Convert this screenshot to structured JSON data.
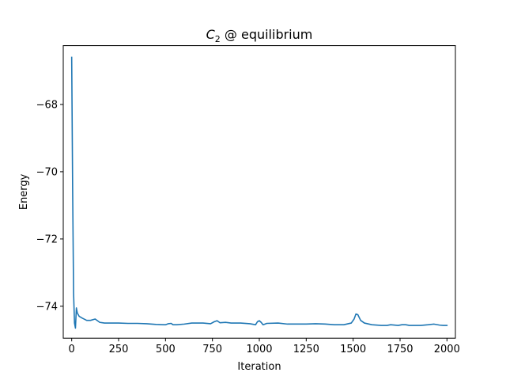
{
  "chart_data": {
    "type": "line",
    "title_main": "C",
    "title_sub": "2",
    "title_rest": " @ equilibrium",
    "xlabel": "Iteration",
    "ylabel": "Energy",
    "xlim": [
      -45,
      2045
    ],
    "ylim": [
      -74.95,
      -66.25
    ],
    "x_ticks": [
      0,
      250,
      500,
      750,
      1000,
      1250,
      1500,
      1750,
      2000
    ],
    "y_ticks": [
      -74,
      -72,
      -70,
      -68
    ],
    "y_tick_labels": [
      "−74",
      "−72",
      "−70",
      "−68"
    ],
    "grid": false,
    "series": [
      {
        "color": "#1f77b4",
        "x": [
          0,
          5,
          10,
          15,
          20,
          25,
          30,
          40,
          55,
          80,
          100,
          125,
          150,
          175,
          200,
          250,
          300,
          350,
          400,
          450,
          490,
          500,
          515,
          530,
          540,
          560,
          600,
          640,
          700,
          740,
          760,
          775,
          790,
          820,
          850,
          900,
          950,
          980,
          990,
          1000,
          1010,
          1020,
          1040,
          1100,
          1150,
          1200,
          1250,
          1300,
          1350,
          1400,
          1450,
          1490,
          1505,
          1515,
          1525,
          1540,
          1560,
          1600,
          1650,
          1680,
          1700,
          1740,
          1760,
          1780,
          1800,
          1830,
          1860,
          1900,
          1930,
          1960,
          1980,
          2000
        ],
        "y": [
          -66.6,
          -70.5,
          -73.6,
          -74.5,
          -74.65,
          -74.05,
          -74.2,
          -74.3,
          -74.35,
          -74.42,
          -74.42,
          -74.38,
          -74.48,
          -74.5,
          -74.5,
          -74.5,
          -74.51,
          -74.51,
          -74.52,
          -74.54,
          -74.55,
          -74.55,
          -74.52,
          -74.51,
          -74.55,
          -74.55,
          -74.53,
          -74.5,
          -74.5,
          -74.52,
          -74.46,
          -74.43,
          -74.49,
          -74.48,
          -74.5,
          -74.5,
          -74.52,
          -74.55,
          -74.46,
          -74.43,
          -74.48,
          -74.55,
          -74.51,
          -74.5,
          -74.53,
          -74.53,
          -74.53,
          -74.52,
          -74.53,
          -74.55,
          -74.55,
          -74.5,
          -74.38,
          -74.23,
          -74.25,
          -74.42,
          -74.5,
          -74.55,
          -74.57,
          -74.57,
          -74.55,
          -74.57,
          -74.55,
          -74.55,
          -74.57,
          -74.57,
          -74.57,
          -74.55,
          -74.53,
          -74.56,
          -74.57,
          -74.57
        ]
      }
    ]
  }
}
